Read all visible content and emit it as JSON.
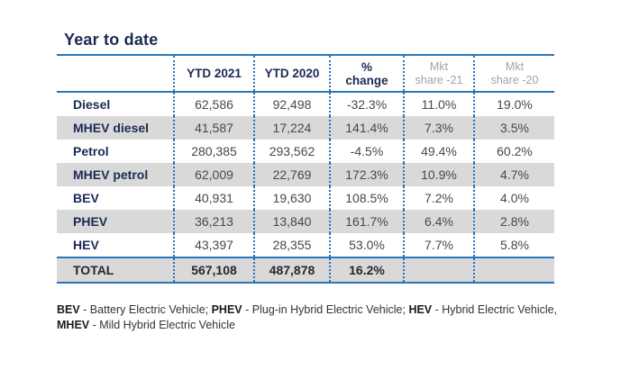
{
  "title": "Year to date",
  "table": {
    "headers": {
      "ytd2021": "YTD 2021",
      "ytd2020": "YTD 2020",
      "pct_l1": "%",
      "pct_l2": "change",
      "mkt21_l1": "Mkt",
      "mkt21_l2": "share -21",
      "mkt20_l1": "Mkt",
      "mkt20_l2": "share -20"
    },
    "rows": [
      {
        "label": "Diesel",
        "ytd2021": "62,586",
        "ytd2020": "92,498",
        "pct": "-32.3%",
        "mkt21": "11.0%",
        "mkt20": "19.0%"
      },
      {
        "label": "MHEV diesel",
        "ytd2021": "41,587",
        "ytd2020": "17,224",
        "pct": "141.4%",
        "mkt21": "7.3%",
        "mkt20": "3.5%"
      },
      {
        "label": "Petrol",
        "ytd2021": "280,385",
        "ytd2020": "293,562",
        "pct": "-4.5%",
        "mkt21": "49.4%",
        "mkt20": "60.2%"
      },
      {
        "label": "MHEV petrol",
        "ytd2021": "62,009",
        "ytd2020": "22,769",
        "pct": "172.3%",
        "mkt21": "10.9%",
        "mkt20": "4.7%"
      },
      {
        "label": "BEV",
        "ytd2021": "40,931",
        "ytd2020": "19,630",
        "pct": "108.5%",
        "mkt21": "7.2%",
        "mkt20": "4.0%"
      },
      {
        "label": "PHEV",
        "ytd2021": "36,213",
        "ytd2020": "13,840",
        "pct": "161.7%",
        "mkt21": "6.4%",
        "mkt20": "2.8%"
      },
      {
        "label": "HEV",
        "ytd2021": "43,397",
        "ytd2020": "28,355",
        "pct": "53.0%",
        "mkt21": "7.7%",
        "mkt20": "5.8%"
      }
    ],
    "total": {
      "label": "TOTAL",
      "ytd2021": "567,108",
      "ytd2020": "487,878",
      "pct": "16.2%",
      "mkt21": "",
      "mkt20": ""
    }
  },
  "footer": {
    "line1": [
      {
        "text": "BEV"
      },
      {
        "text": " - Battery Electric Vehicle; "
      },
      {
        "text": "PHEV"
      },
      {
        "text": " - Plug-in Hybrid Electric Vehicle; "
      },
      {
        "text": "HEV"
      },
      {
        "text": " - Hybrid Electric Vehicle,"
      }
    ],
    "line2": [
      {
        "text": "MHEV"
      },
      {
        "text": " - Mild Hybrid Electric Vehicle"
      }
    ]
  },
  "colors": {
    "navy_text": "#1b2a55",
    "line_blue": "#2776ba",
    "row_gray": "#d9d9d9",
    "muted_header_gray": "#9da3ab",
    "number_gray": "#47484b"
  },
  "chart_data": {
    "type": "table",
    "title": "Year to date",
    "columns": [
      "",
      "YTD 2021",
      "YTD 2020",
      "% change",
      "Mkt share -21",
      "Mkt share -20"
    ],
    "rows": [
      [
        "Diesel",
        62586,
        92498,
        -32.3,
        11.0,
        19.0
      ],
      [
        "MHEV diesel",
        41587,
        17224,
        141.4,
        7.3,
        3.5
      ],
      [
        "Petrol",
        280385,
        293562,
        -4.5,
        49.4,
        60.2
      ],
      [
        "MHEV petrol",
        62009,
        22769,
        172.3,
        10.9,
        4.7
      ],
      [
        "BEV",
        40931,
        19630,
        108.5,
        7.2,
        4.0
      ],
      [
        "PHEV",
        36213,
        13840,
        161.7,
        6.4,
        2.8
      ],
      [
        "HEV",
        43397,
        28355,
        53.0,
        7.7,
        5.8
      ],
      [
        "TOTAL",
        567108,
        487878,
        16.2,
        null,
        null
      ]
    ],
    "notes": "BEV - Battery Electric Vehicle; PHEV - Plug-in Hybrid Electric Vehicle; HEV - Hybrid Electric Vehicle, MHEV - Mild Hybrid Electric Vehicle"
  }
}
